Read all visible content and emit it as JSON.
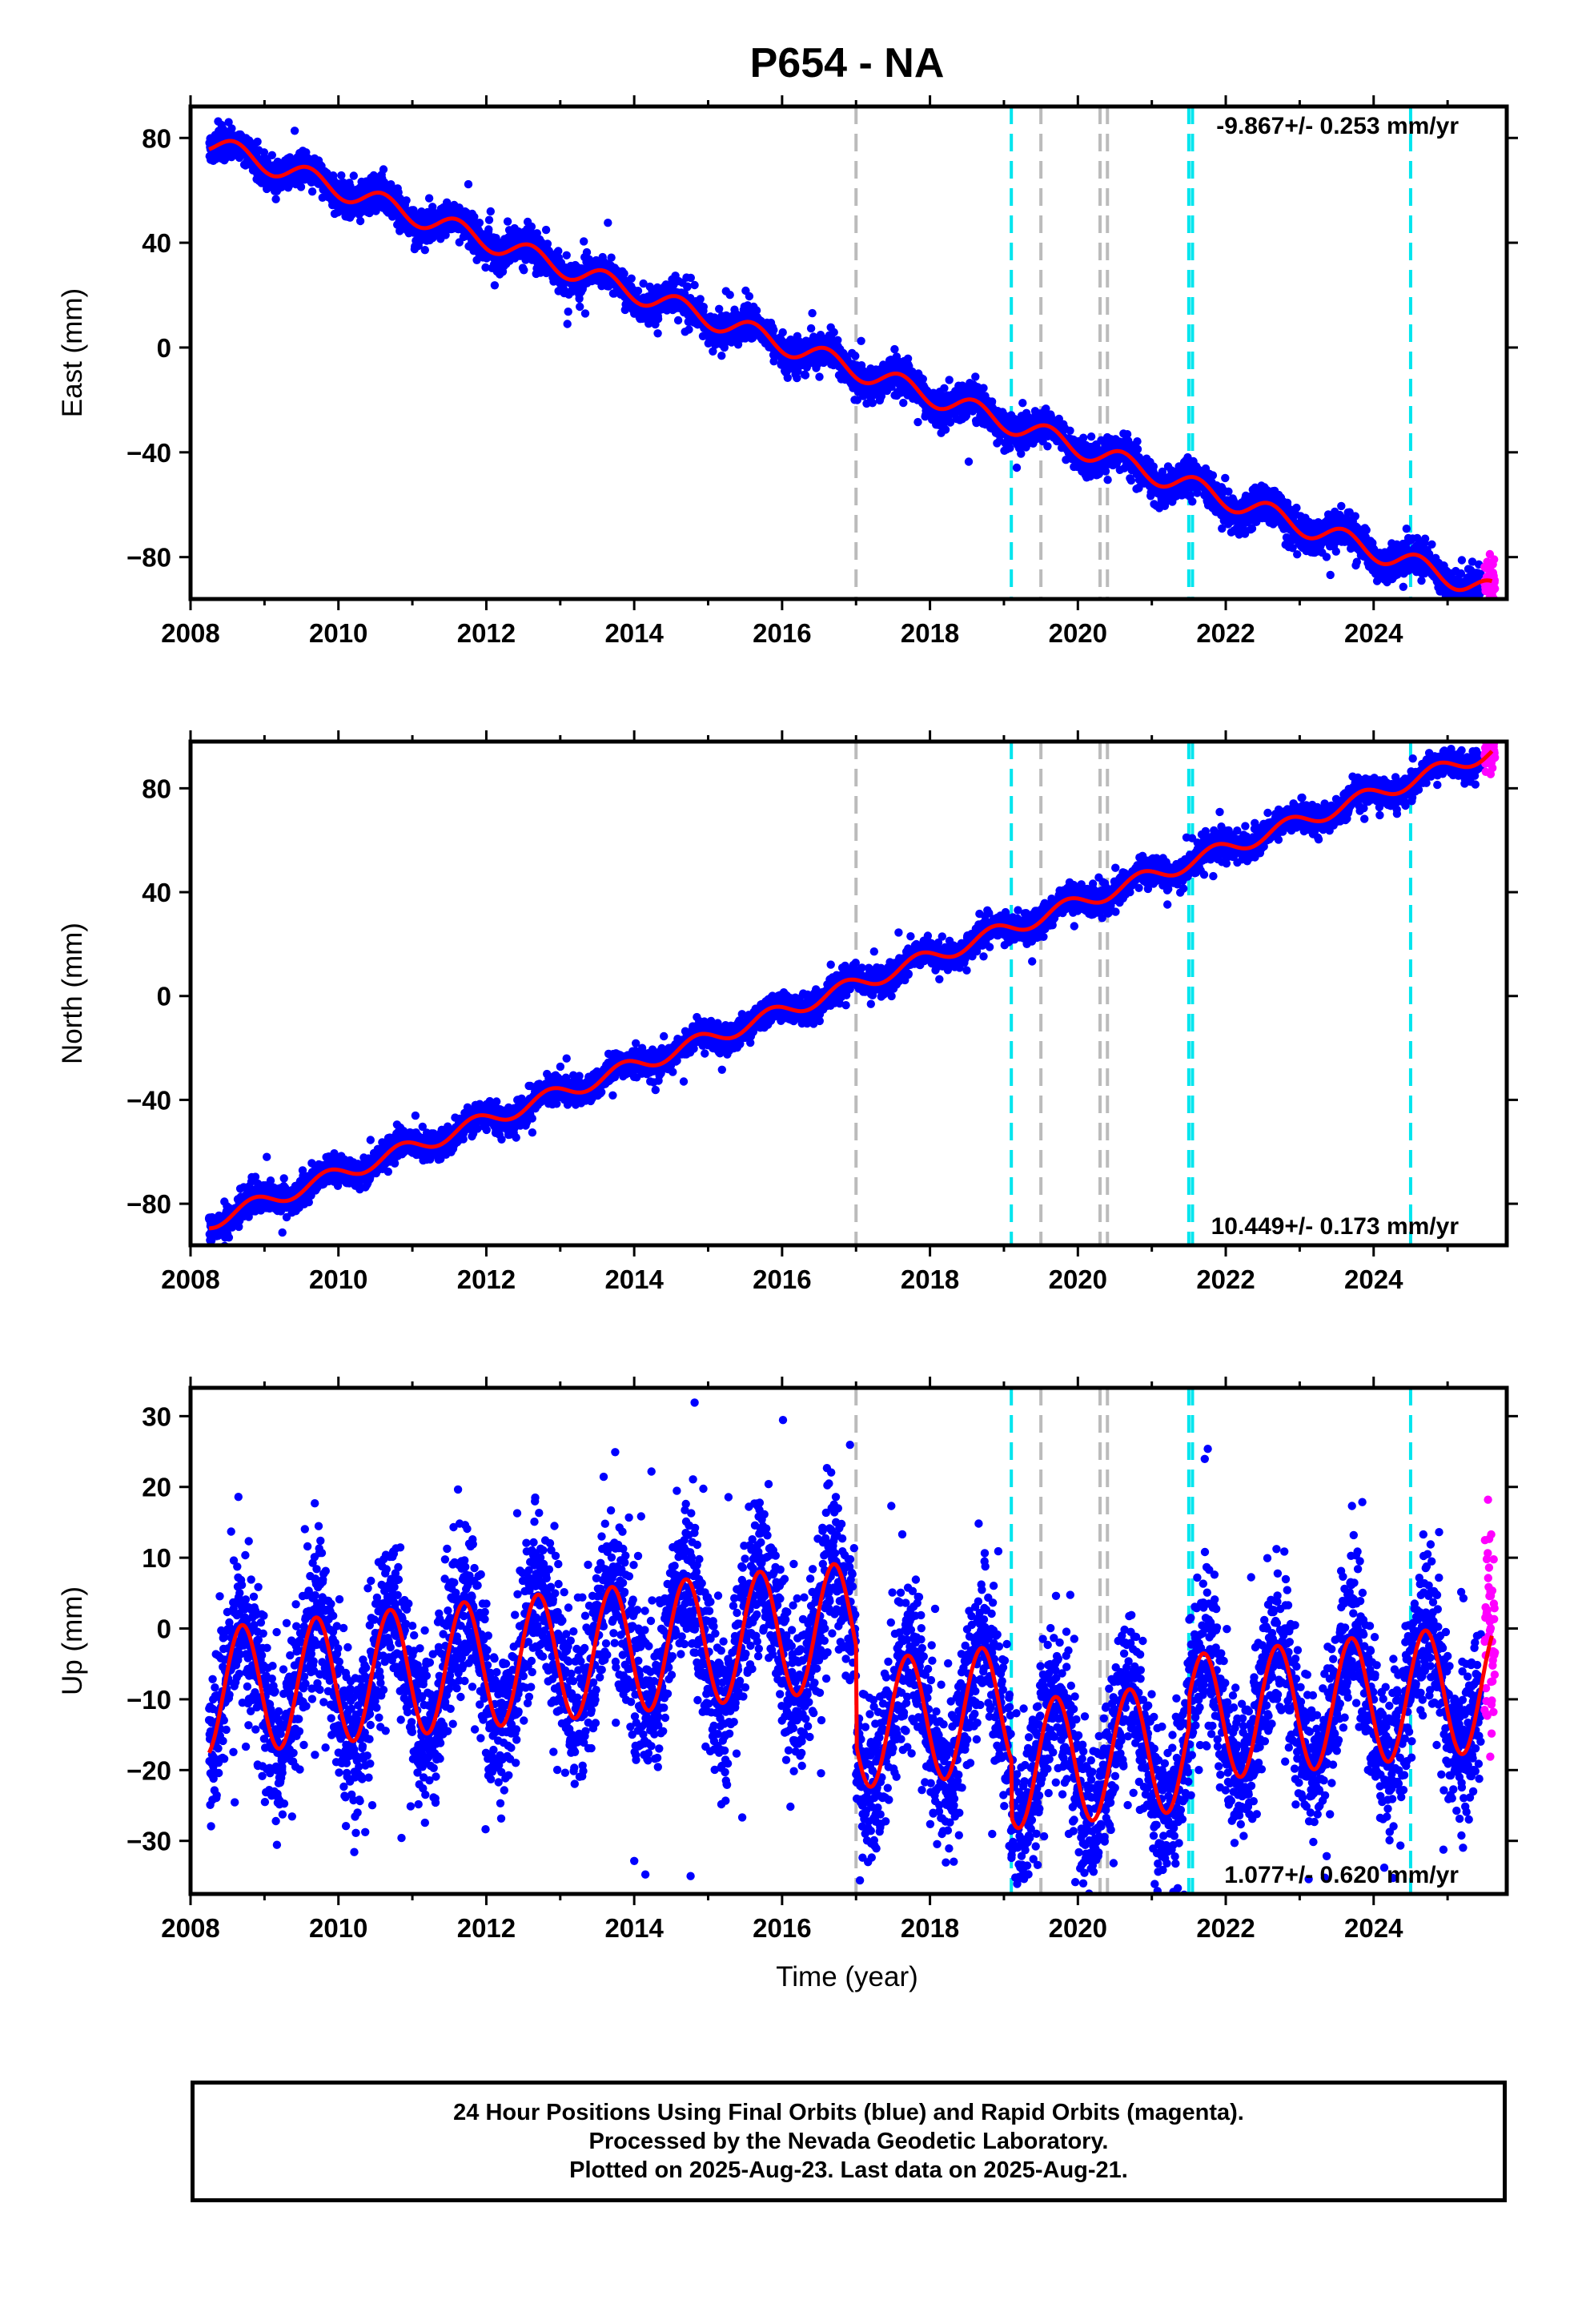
{
  "chart_data": [
    {
      "type": "scatter",
      "title": "P654 - NA",
      "ylabel": "East (mm)",
      "xlabel": "",
      "xlim": [
        2008.0,
        2025.8
      ],
      "ylim": [
        -96,
        92
      ],
      "xticks": [
        2008,
        2010,
        2012,
        2014,
        2016,
        2018,
        2020,
        2022,
        2024
      ],
      "xtick_labels": [
        "2008",
        "2010",
        "2012",
        "2014",
        "2016",
        "2018",
        "2020",
        "2022",
        "2024"
      ],
      "yticks": [
        80,
        40,
        0,
        -40,
        -80
      ],
      "ytick_labels": [
        "80",
        "40",
        "0",
        "−40",
        "−80"
      ],
      "rate_label": "-9.867+/- 0.253 mm/yr",
      "rate_position": "top-right",
      "model": {
        "start": 2008.25,
        "end": 2025.6,
        "start_value": 78,
        "velocity": -9.867,
        "annual_amplitude": 4.0,
        "annual_phase": 0.35,
        "noise_sd": 3.0,
        "outlier_sd": 6.0
      },
      "series": [
        {
          "kind": "final_orbits_points",
          "color": "#0000ff",
          "x_start": 2008.25,
          "x_end": 2025.45
        },
        {
          "kind": "rapid_orbits_points",
          "color": "#ff00ff",
          "x_start": 2025.5,
          "x_end": 2025.64
        },
        {
          "kind": "model_fit",
          "color": "#ff0000"
        }
      ],
      "equipment_change_lines": {
        "color": "#bbbbbb",
        "x": [
          2017.0,
          2019.5,
          2020.3,
          2020.4
        ]
      },
      "earthquake_lines": {
        "color": "#00e5ee",
        "x": [
          2019.1,
          2021.5,
          2021.55,
          2024.5
        ]
      }
    },
    {
      "type": "scatter",
      "title": "",
      "ylabel": "North (mm)",
      "xlabel": "",
      "xlim": [
        2008.0,
        2025.8
      ],
      "ylim": [
        -96,
        98
      ],
      "xticks": [
        2008,
        2010,
        2012,
        2014,
        2016,
        2018,
        2020,
        2022,
        2024
      ],
      "xtick_labels": [
        "2008",
        "2010",
        "2012",
        "2014",
        "2016",
        "2018",
        "2020",
        "2022",
        "2024"
      ],
      "yticks": [
        80,
        40,
        0,
        -40,
        -80
      ],
      "ytick_labels": [
        "80",
        "40",
        "0",
        "−40",
        "−80"
      ],
      "rate_label": "10.449+/- 0.173 mm/yr",
      "rate_position": "bottom-right",
      "model": {
        "start": 2008.25,
        "end": 2025.6,
        "start_value": -87,
        "velocity": 10.449,
        "annual_amplitude": 3.0,
        "annual_phase": 0.6,
        "noise_sd": 2.5,
        "outlier_sd": 5.0
      },
      "series": [
        {
          "kind": "final_orbits_points",
          "color": "#0000ff",
          "x_start": 2008.25,
          "x_end": 2025.45
        },
        {
          "kind": "rapid_orbits_points",
          "color": "#ff00ff",
          "x_start": 2025.5,
          "x_end": 2025.64
        },
        {
          "kind": "model_fit",
          "color": "#ff0000"
        }
      ],
      "equipment_change_lines": {
        "color": "#bbbbbb",
        "x": [
          2017.0,
          2019.5,
          2020.3,
          2020.4
        ]
      },
      "earthquake_lines": {
        "color": "#00e5ee",
        "x": [
          2019.1,
          2021.5,
          2021.55,
          2024.5
        ]
      }
    },
    {
      "type": "scatter",
      "title": "",
      "ylabel": "Up (mm)",
      "xlabel": "Time (year)",
      "xlim": [
        2008.0,
        2025.8
      ],
      "ylim": [
        -37.5,
        34
      ],
      "xticks": [
        2008,
        2010,
        2012,
        2014,
        2016,
        2018,
        2020,
        2022,
        2024
      ],
      "xtick_labels": [
        "2008",
        "2010",
        "2012",
        "2014",
        "2016",
        "2018",
        "2020",
        "2022",
        "2024"
      ],
      "yticks": [
        30,
        20,
        10,
        0,
        -10,
        -20,
        -30
      ],
      "ytick_labels": [
        "30",
        "20",
        "10",
        "0",
        "−10",
        "−20",
        "−30"
      ],
      "rate_label": "1.077+/- 0.620 mm/yr",
      "rate_position": "bottom-right",
      "model": {
        "start": 2008.25,
        "end": 2025.6,
        "start_value": -9,
        "velocity": 1.077,
        "annual_amplitude": 9.0,
        "annual_phase": 0.45,
        "noise_sd": 5.5,
        "outlier_sd": 10.0,
        "offsets": [
          {
            "x": 2017.0,
            "dy": -14
          },
          {
            "x": 2019.1,
            "dy": -8
          },
          {
            "x": 2021.5,
            "dy": 4
          }
        ]
      },
      "series": [
        {
          "kind": "final_orbits_points",
          "color": "#0000ff",
          "x_start": 2008.25,
          "x_end": 2025.45
        },
        {
          "kind": "rapid_orbits_points",
          "color": "#ff00ff",
          "x_start": 2025.5,
          "x_end": 2025.64
        },
        {
          "kind": "model_fit",
          "color": "#ff0000"
        }
      ],
      "equipment_change_lines": {
        "color": "#bbbbbb",
        "x": [
          2017.0,
          2019.5,
          2020.3,
          2020.4
        ]
      },
      "earthquake_lines": {
        "color": "#00e5ee",
        "x": [
          2019.1,
          2021.5,
          2021.55,
          2024.5
        ]
      }
    }
  ],
  "footer": {
    "line1": "24 Hour Positions Using Final Orbits (blue) and Rapid Orbits (magenta).",
    "line2": "Processed by the Nevada Geodetic Laboratory.",
    "line3": "Plotted on 2025-Aug-23. Last data on 2025-Aug-21."
  }
}
